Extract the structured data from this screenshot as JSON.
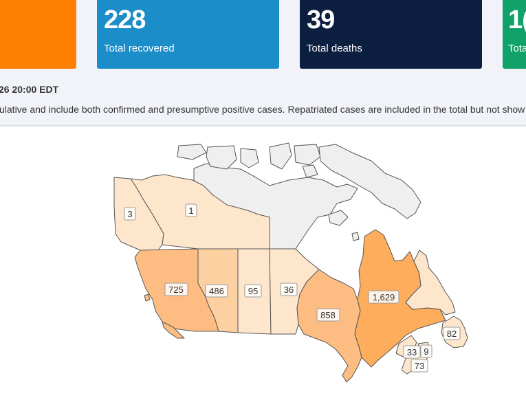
{
  "stats": {
    "recovered": {
      "value": "228",
      "label": "Total recovered",
      "color": "#1b8dc9"
    },
    "deaths": {
      "value": "39",
      "label": "Total deaths",
      "color": "#0d1f40"
    },
    "tested": {
      "value": "1(",
      "label": "Tota",
      "color": "#11a26a"
    },
    "cases_card_color": "#ff7f00"
  },
  "updated_text": "26 20:00 EDT",
  "note_text": "ulative and include both confirmed and presumptive positive cases. Repatriated cases are included in the total but not show",
  "map": {
    "colors": {
      "none": "#efefef",
      "lowest": "#fde6cc",
      "low": "#fcd0a1",
      "mid": "#fdbd82",
      "high": "#fdad5c"
    },
    "labels": {
      "yt": "3",
      "nt": "1",
      "bc": "725",
      "ab": "486",
      "sk": "95",
      "mb": "36",
      "on": "858",
      "qc": "1,629",
      "nl": "82",
      "nb": "33",
      "pe": "9",
      "ns": "73"
    }
  }
}
